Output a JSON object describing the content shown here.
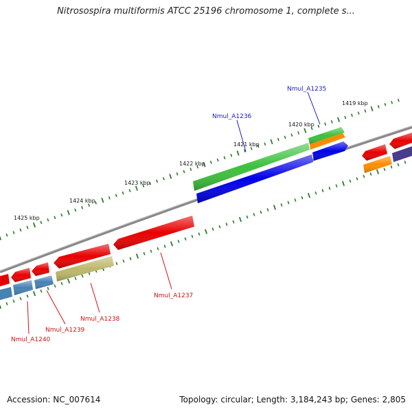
{
  "header": {
    "title": "Nitrosospira multiformis ATCC 25196 chromosome 1, complete s..."
  },
  "footer": {
    "accession": "Accession: NC_007614",
    "summary": "Topology: circular; Length: 3,184,243 bp; Genes: 2,805"
  },
  "ruler": {
    "labels": [
      "1419 kbp",
      "1420 kbp",
      "1421 kbp",
      "1422 kbp",
      "1423 kbp",
      "1424 kbp",
      "1425 kbp"
    ]
  },
  "genes": {
    "forward": [
      "Nmul_A1236",
      "Nmul_A1235"
    ],
    "reverse": [
      "Nmul_A1240",
      "Nmul_A1239",
      "Nmul_A1238",
      "Nmul_A1237"
    ]
  },
  "colors": {
    "backbone": "#888888",
    "tick": "#2a7a2a",
    "forward_label": "#1a1acc",
    "reverse_label": "#cc1111",
    "red": "#e80000",
    "green": "#3cc03c",
    "blue": "#0000e8",
    "orange": "#ff8c00",
    "steelblue": "#4682b4",
    "khaki": "#bdb76b",
    "slateblue": "#483d8b"
  }
}
